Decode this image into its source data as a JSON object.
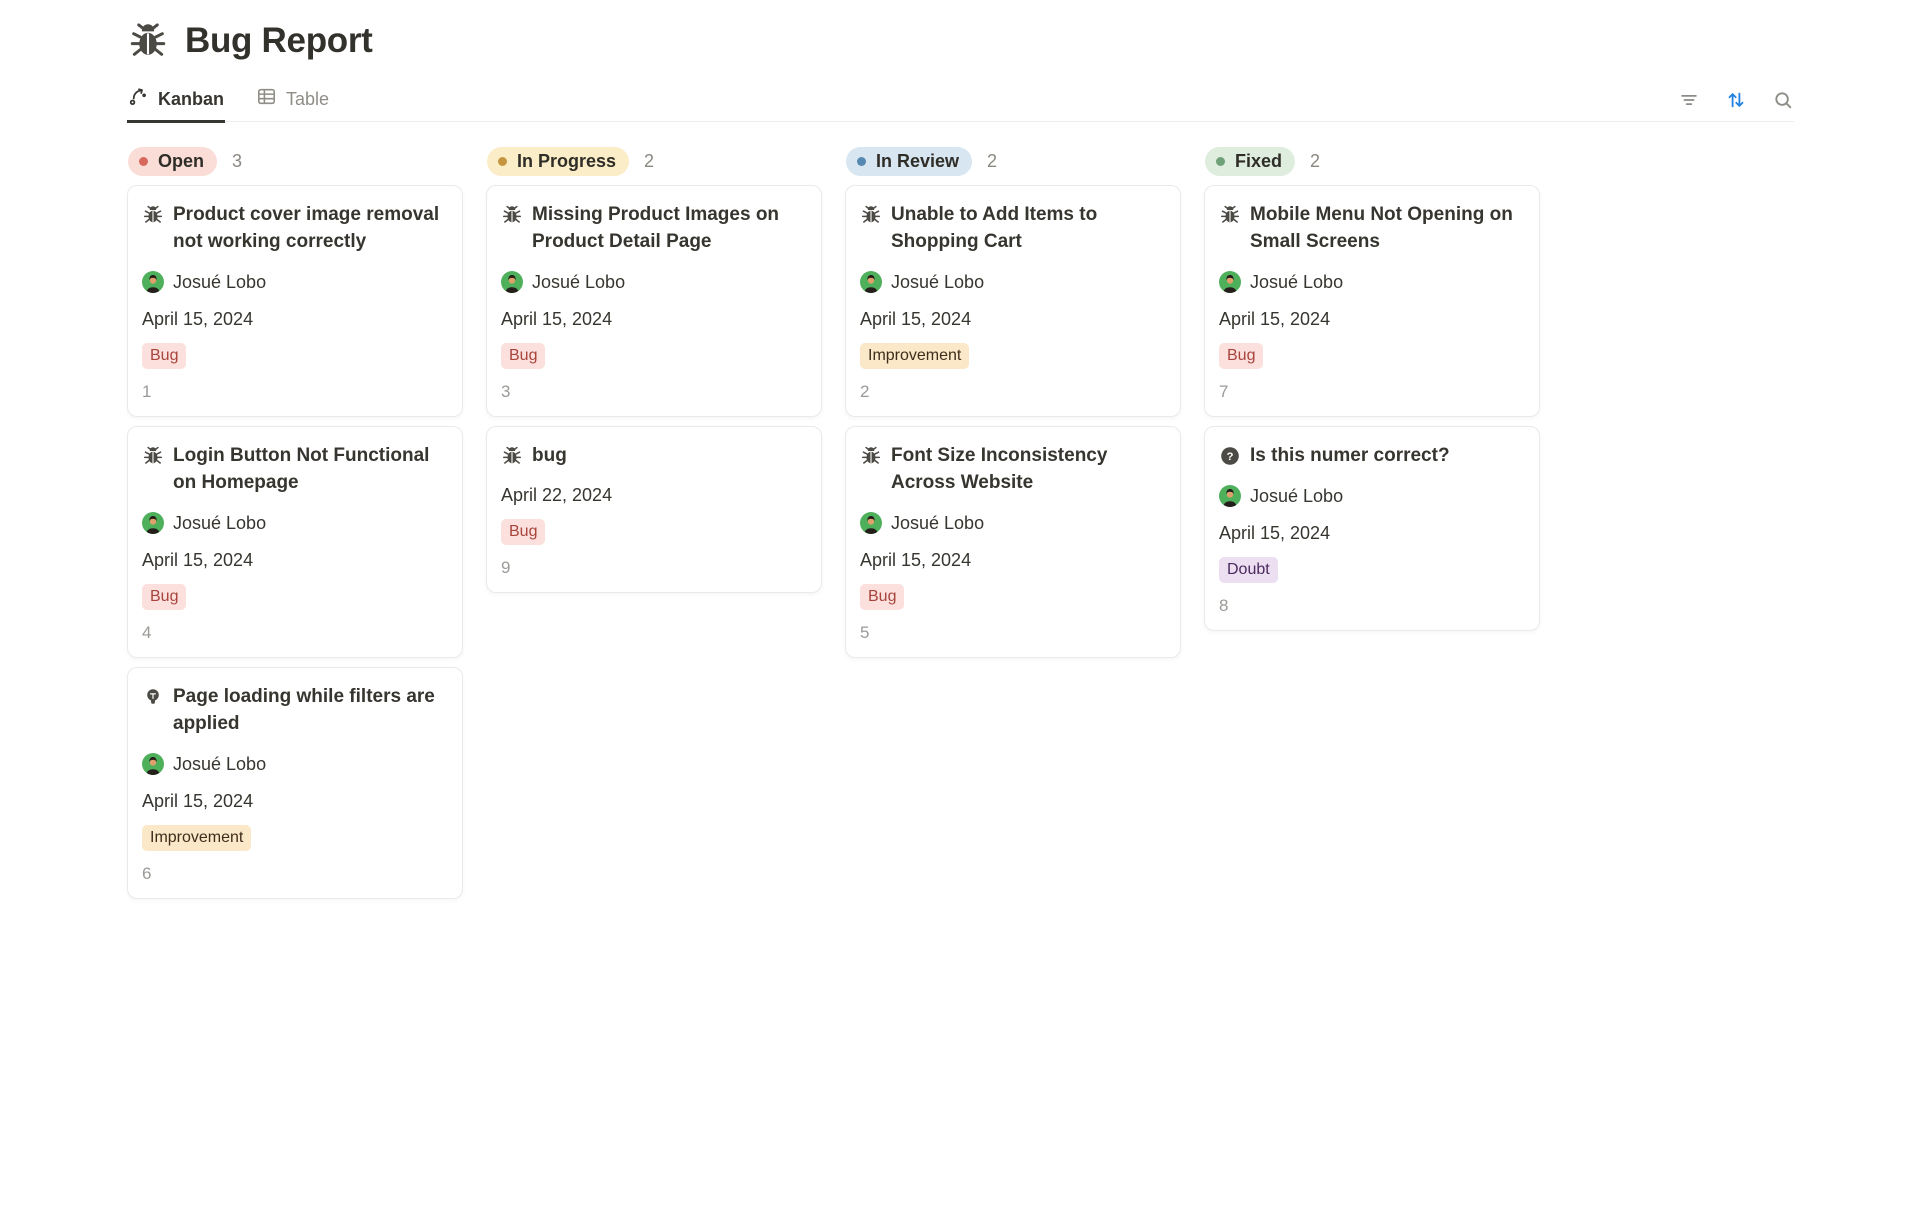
{
  "page": {
    "title": "Bug Report",
    "icon": "bug-icon"
  },
  "view_tabs": [
    {
      "label": "Kanban",
      "icon": "kanban-icon",
      "active": true
    },
    {
      "label": "Table",
      "icon": "table-icon",
      "active": false
    }
  ],
  "toolbar": {
    "icons": [
      "filter-icon",
      "sort-icon",
      "search-icon"
    ],
    "sort_active_color": "#2383E2",
    "icon_color": "#8D8B86"
  },
  "avatar_color": "#4FB05C",
  "columns": [
    {
      "name": "Open",
      "count": "3",
      "pill": {
        "bg": "#FBDDD8",
        "dot": "#D9685C"
      },
      "cards": [
        {
          "icon": "bug",
          "title": "Product cover image removal not working correctly",
          "assignee": "Josué Lobo",
          "date": "April 15, 2024",
          "tag": {
            "label": "Bug",
            "bg": "#FBE0DD",
            "color": "#A8443C"
          },
          "number": "1"
        },
        {
          "icon": "bug",
          "title": "Login Button Not Functional on Homepage",
          "assignee": "Josué Lobo",
          "date": "April 15, 2024",
          "tag": {
            "label": "Bug",
            "bg": "#FBE0DD",
            "color": "#A8443C"
          },
          "number": "4"
        },
        {
          "icon": "bulb",
          "title": "Page loading while filters are applied",
          "assignee": "Josué Lobo",
          "date": "April 15, 2024",
          "tag": {
            "label": "Improvement",
            "bg": "#FAE8C8",
            "color": "#402C1B"
          },
          "number": "6"
        }
      ]
    },
    {
      "name": "In Progress",
      "count": "2",
      "pill": {
        "bg": "#FBEDC7",
        "dot": "#C6953F"
      },
      "cards": [
        {
          "icon": "bug",
          "title": "Missing Product Images on Product Detail Page",
          "assignee": "Josué Lobo",
          "date": "April 15, 2024",
          "tag": {
            "label": "Bug",
            "bg": "#FBE0DD",
            "color": "#A8443C"
          },
          "number": "3"
        },
        {
          "icon": "bug",
          "title": "bug",
          "date": "April 22, 2024",
          "tag": {
            "label": "Bug",
            "bg": "#FBE0DD",
            "color": "#A8443C"
          },
          "number": "9"
        }
      ]
    },
    {
      "name": "In Review",
      "count": "2",
      "pill": {
        "bg": "#D7E6F0",
        "dot": "#5588B3"
      },
      "cards": [
        {
          "icon": "bug",
          "title": "Unable to Add Items to Shopping Cart",
          "assignee": "Josué Lobo",
          "date": "April 15, 2024",
          "tag": {
            "label": "Improvement",
            "bg": "#FAE8C8",
            "color": "#402C1B"
          },
          "number": "2"
        },
        {
          "icon": "bug",
          "title": "Font Size Inconsistency Across Website",
          "assignee": "Josué Lobo",
          "date": "April 15, 2024",
          "tag": {
            "label": "Bug",
            "bg": "#FBE0DD",
            "color": "#A8443C"
          },
          "number": "5"
        }
      ]
    },
    {
      "name": "Fixed",
      "count": "2",
      "pill": {
        "bg": "#DEEDDE",
        "dot": "#6FA077"
      },
      "cards": [
        {
          "icon": "bug",
          "title": "Mobile Menu Not Opening on Small Screens",
          "assignee": "Josué Lobo",
          "date": "April 15, 2024",
          "tag": {
            "label": "Bug",
            "bg": "#FBE0DD",
            "color": "#A8443C"
          },
          "number": "7"
        },
        {
          "icon": "question",
          "title": "Is this numer correct?",
          "assignee": "Josué Lobo",
          "date": "April 15, 2024",
          "tag": {
            "label": "Doubt",
            "bg": "#EBDFF1",
            "color": "#4B2A5E"
          },
          "number": "8"
        }
      ]
    }
  ]
}
